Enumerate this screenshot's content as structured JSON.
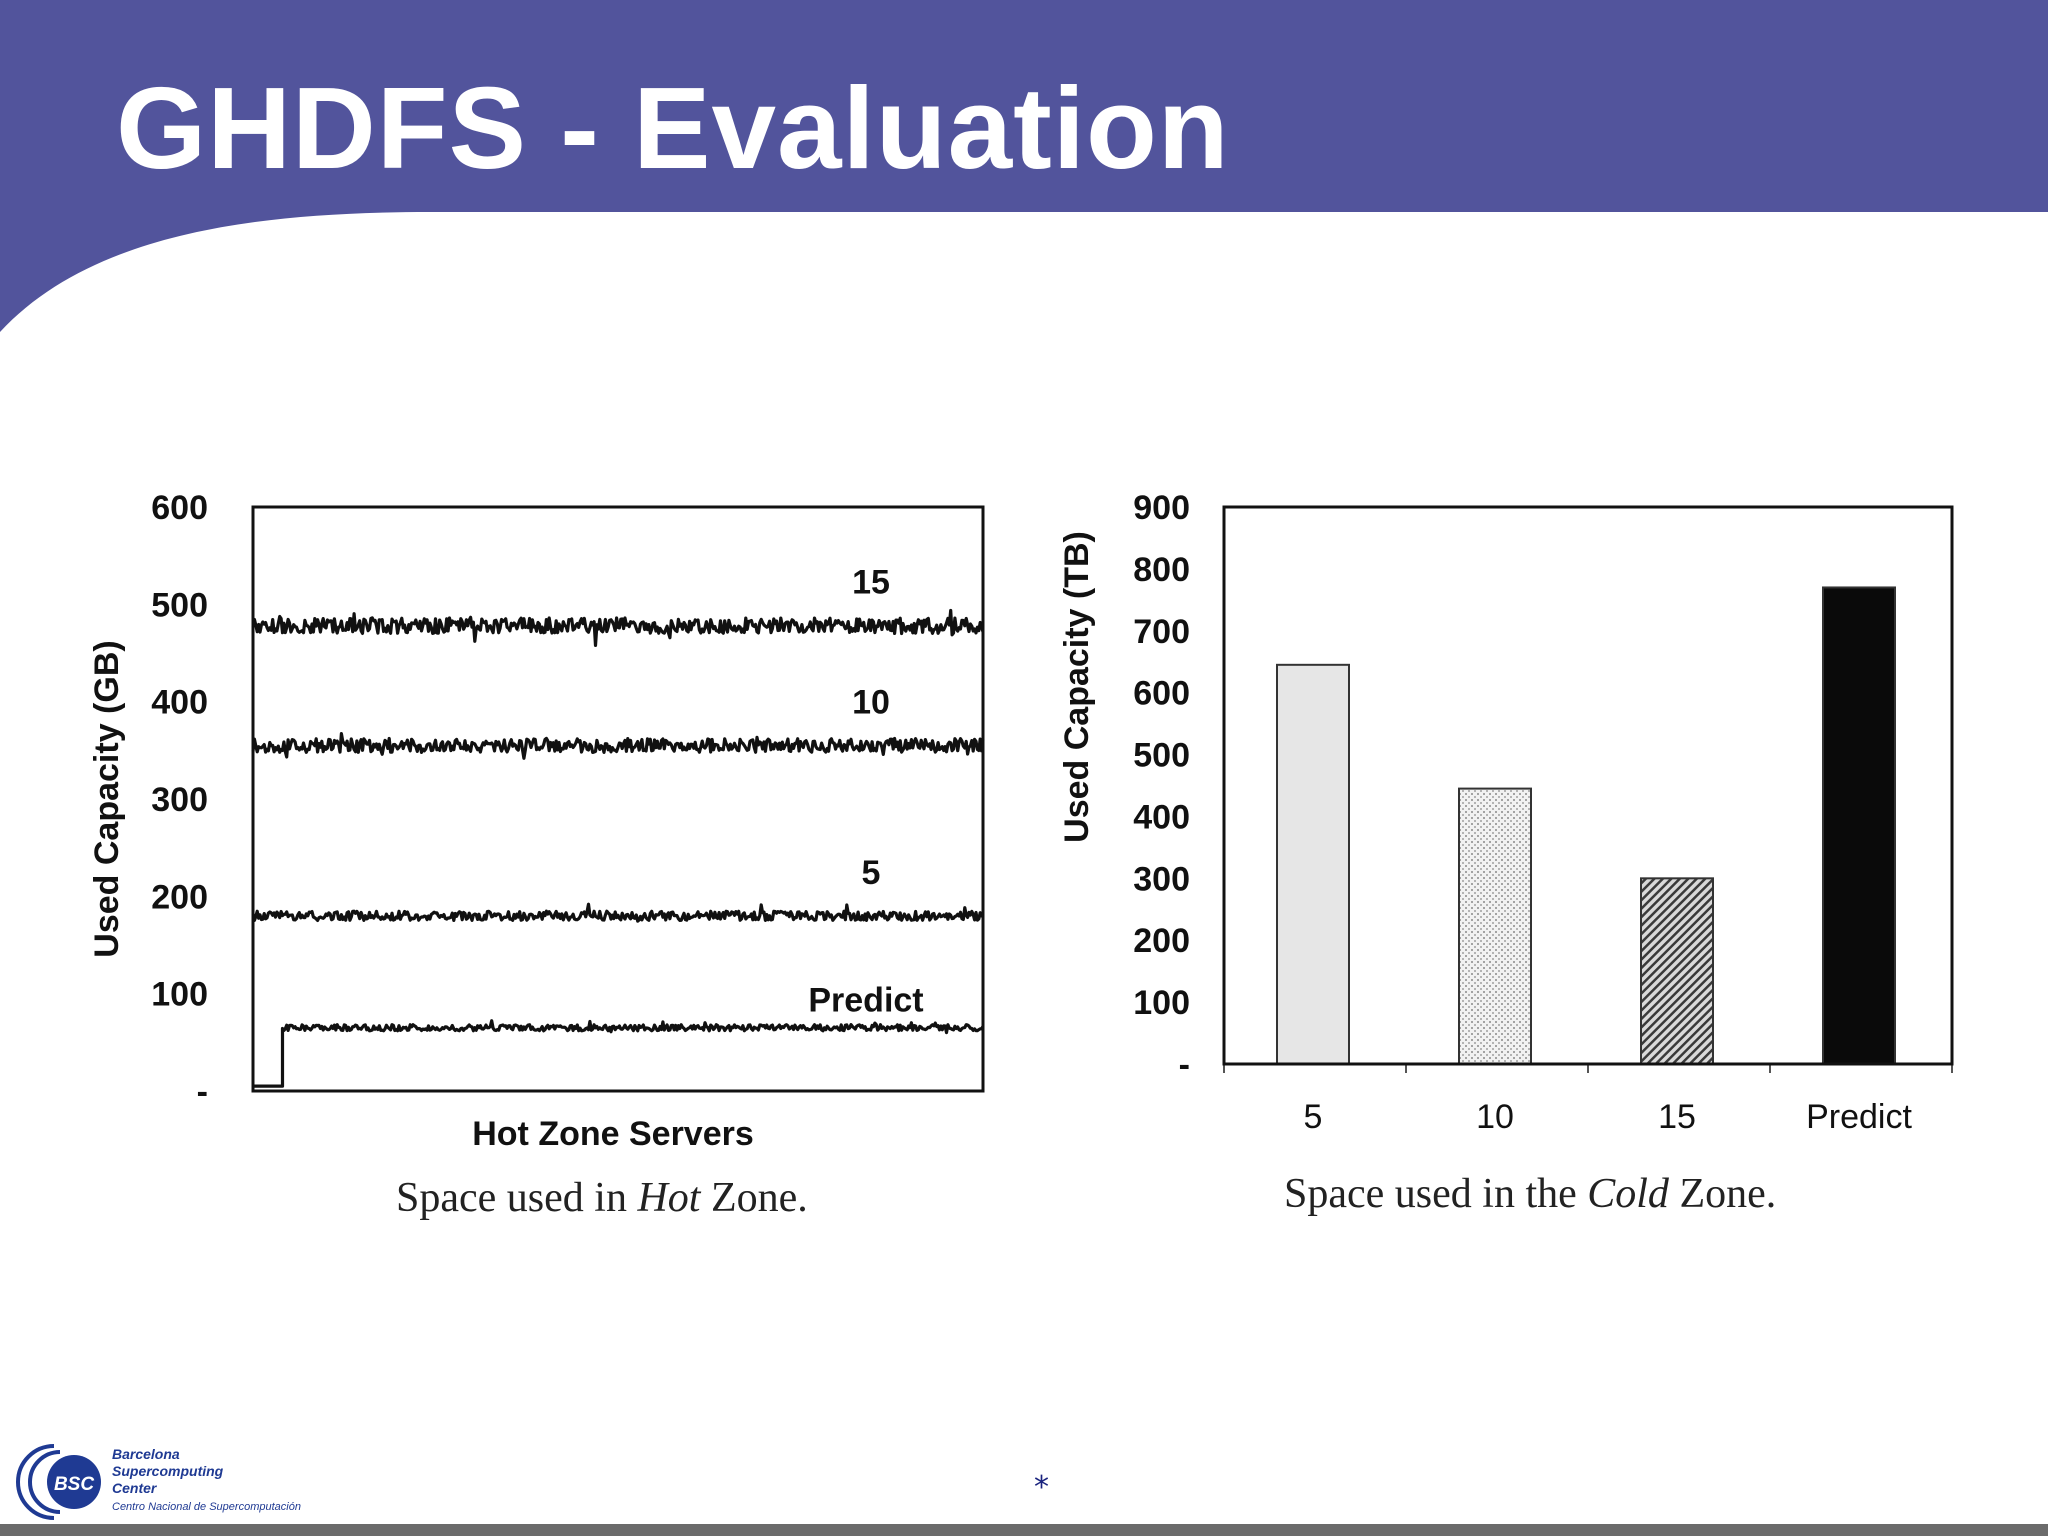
{
  "slide": {
    "title": "GHDFS - Evaluation",
    "footer_mark": "*",
    "colors": {
      "header": "#52549c",
      "footer_bar": "#6b6b6b"
    }
  },
  "logo": {
    "badge": "BSC",
    "line1": "Barcelona",
    "line2": "Supercomputing",
    "line3": "Center",
    "line4": "Centro Nacional de Supercomputación",
    "color": "#1f3a93"
  },
  "chart_data": [
    {
      "type": "line",
      "xlabel": "Hot Zone Servers",
      "ylabel": "Used Capacity (GB)",
      "ylim": [
        0,
        600
      ],
      "yticks": [
        "-",
        "100",
        "200",
        "300",
        "400",
        "500",
        "600"
      ],
      "caption": {
        "pre": "Space used in ",
        "em": "Hot",
        "post": " Zone."
      },
      "series": [
        {
          "name": "15",
          "level": 478,
          "noise": 10
        },
        {
          "name": "10",
          "level": 355,
          "noise": 9
        },
        {
          "name": "5",
          "level": 180,
          "noise": 6
        },
        {
          "name": "Predict",
          "level": 65,
          "noise": 4,
          "initial_level": 5,
          "step_at": 0.04
        }
      ]
    },
    {
      "type": "bar",
      "categories": [
        "5",
        "10",
        "15",
        "Predict"
      ],
      "values": [
        645,
        445,
        300,
        770
      ],
      "ylabel": "Used Capacity (TB)",
      "ylim": [
        0,
        900
      ],
      "yticks": [
        "-",
        "100",
        "200",
        "300",
        "400",
        "500",
        "600",
        "700",
        "800",
        "900"
      ],
      "caption": {
        "pre": "Space used in the ",
        "em": "Cold",
        "post": " Zone."
      },
      "bar_fills": [
        "light-gray",
        "dotted",
        "hatched",
        "black"
      ]
    }
  ]
}
